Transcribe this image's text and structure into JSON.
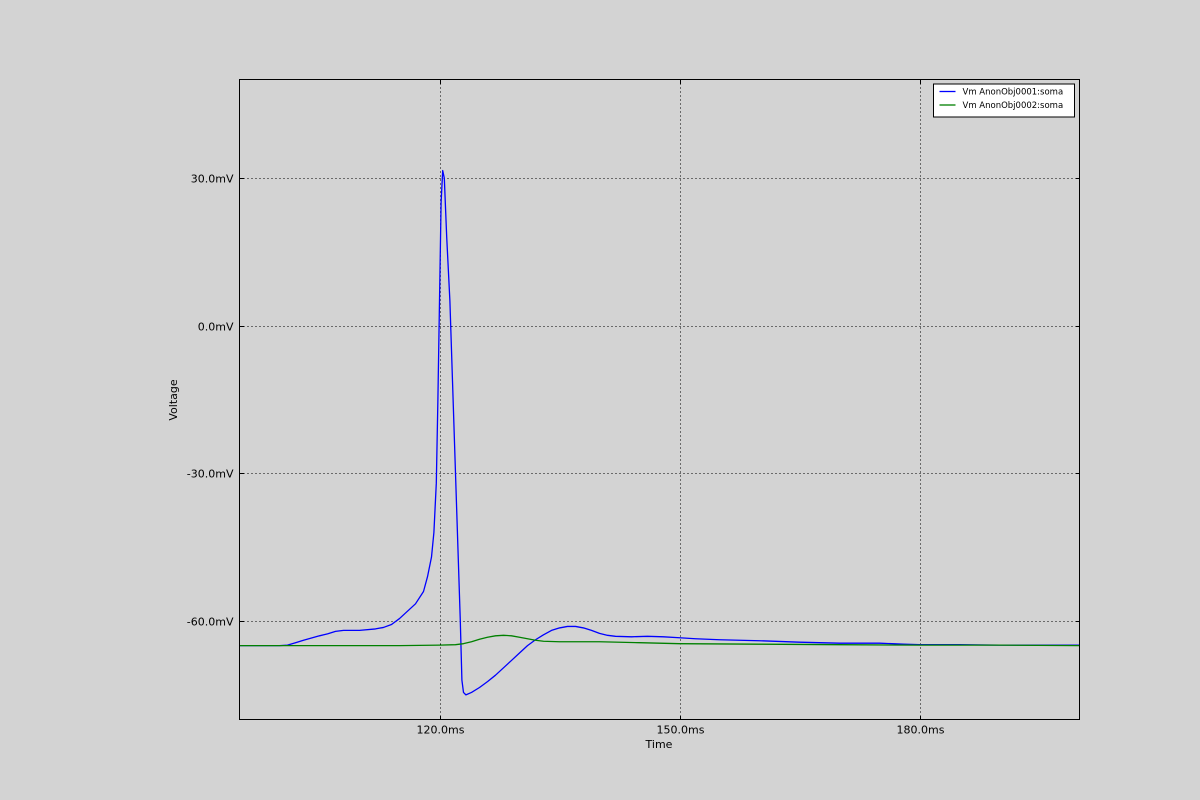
{
  "chart_data": {
    "type": "line",
    "title": "",
    "xlabel": "Time",
    "ylabel": "Voltage",
    "xlim": [
      95,
      200
    ],
    "ylim": [
      -80,
      50
    ],
    "xticks": [
      120,
      150,
      180
    ],
    "xtick_labels": [
      "120.0ms",
      "150.0ms",
      "180.0ms"
    ],
    "yticks": [
      30,
      0,
      -30,
      -60
    ],
    "ytick_labels": [
      "30.0mV",
      "0.0mV",
      "-30.0mV",
      "-60.0mV"
    ],
    "grid": true,
    "legend_position": "top-right",
    "background": "#d3d3d3",
    "series": [
      {
        "name": "Vm AnonObj0001:soma",
        "color": "#0000ff",
        "points": [
          [
            95,
            -65.0
          ],
          [
            100,
            -65.0
          ],
          [
            101,
            -64.9
          ],
          [
            102,
            -64.4
          ],
          [
            103,
            -63.9
          ],
          [
            105,
            -63.0
          ],
          [
            106,
            -62.6
          ],
          [
            107,
            -62.1
          ],
          [
            108,
            -61.9
          ],
          [
            110,
            -61.9
          ],
          [
            112,
            -61.6
          ],
          [
            113,
            -61.3
          ],
          [
            114,
            -60.7
          ],
          [
            115,
            -59.5
          ],
          [
            116,
            -58.0
          ],
          [
            117,
            -56.5
          ],
          [
            118,
            -54.0
          ],
          [
            118.5,
            -51.0
          ],
          [
            119,
            -47.0
          ],
          [
            119.3,
            -42.0
          ],
          [
            119.6,
            -32.0
          ],
          [
            119.8,
            -15.0
          ],
          [
            120.0,
            5.0
          ],
          [
            120.2,
            25.0
          ],
          [
            120.4,
            31.5
          ],
          [
            120.6,
            30.0
          ],
          [
            120.9,
            18.0
          ],
          [
            121.3,
            5.0
          ],
          [
            121.7,
            -15.0
          ],
          [
            122.0,
            -30.0
          ],
          [
            122.3,
            -45.0
          ],
          [
            122.6,
            -60.0
          ],
          [
            122.8,
            -72.0
          ],
          [
            123.0,
            -74.5
          ],
          [
            123.3,
            -75.0
          ],
          [
            124,
            -74.5
          ],
          [
            125,
            -73.5
          ],
          [
            126,
            -72.3
          ],
          [
            127,
            -71.0
          ],
          [
            128,
            -69.5
          ],
          [
            129,
            -68.0
          ],
          [
            130,
            -66.5
          ],
          [
            131,
            -65.0
          ],
          [
            132,
            -63.8
          ],
          [
            133,
            -62.8
          ],
          [
            134,
            -61.9
          ],
          [
            135,
            -61.4
          ],
          [
            136,
            -61.1
          ],
          [
            137,
            -61.1
          ],
          [
            138,
            -61.4
          ],
          [
            139,
            -61.9
          ],
          [
            140,
            -62.5
          ],
          [
            141,
            -62.9
          ],
          [
            142,
            -63.1
          ],
          [
            144,
            -63.2
          ],
          [
            146,
            -63.1
          ],
          [
            148,
            -63.2
          ],
          [
            150,
            -63.4
          ],
          [
            152,
            -63.6
          ],
          [
            155,
            -63.8
          ],
          [
            160,
            -64.0
          ],
          [
            165,
            -64.3
          ],
          [
            170,
            -64.5
          ],
          [
            175,
            -64.5
          ],
          [
            178,
            -64.7
          ],
          [
            180,
            -64.8
          ],
          [
            185,
            -64.8
          ],
          [
            190,
            -64.9
          ],
          [
            195,
            -64.9
          ],
          [
            200,
            -64.9
          ]
        ]
      },
      {
        "name": "Vm AnonObj0002:soma",
        "color": "#008000",
        "points": [
          [
            95,
            -65.0
          ],
          [
            100,
            -65.0
          ],
          [
            110,
            -65.0
          ],
          [
            115,
            -65.0
          ],
          [
            120,
            -64.9
          ],
          [
            122,
            -64.8
          ],
          [
            123,
            -64.6
          ],
          [
            124,
            -64.2
          ],
          [
            125,
            -63.7
          ],
          [
            126,
            -63.3
          ],
          [
            127,
            -63.0
          ],
          [
            128,
            -62.9
          ],
          [
            129,
            -63.0
          ],
          [
            130,
            -63.3
          ],
          [
            131,
            -63.6
          ],
          [
            132,
            -63.9
          ],
          [
            133,
            -64.1
          ],
          [
            135,
            -64.2
          ],
          [
            140,
            -64.2
          ],
          [
            145,
            -64.4
          ],
          [
            150,
            -64.6
          ],
          [
            160,
            -64.7
          ],
          [
            170,
            -64.8
          ],
          [
            180,
            -64.9
          ],
          [
            190,
            -64.9
          ],
          [
            200,
            -65.0
          ]
        ]
      }
    ]
  }
}
